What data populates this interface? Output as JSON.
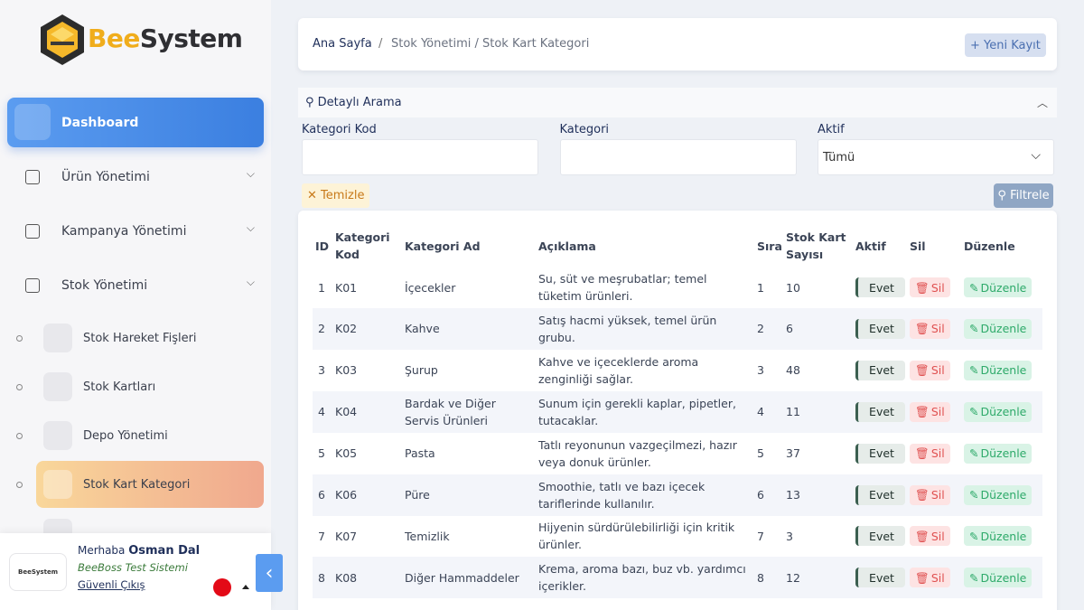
{
  "sidebar": {
    "logo": "BeeSystem",
    "menu": [
      "Dashboard",
      "Ürün Yönetimi",
      "Kampanya Yönetimi",
      "Stok Yönetimi"
    ],
    "submenu": [
      "Stok Hareket Fişleri",
      "Stok Kartları",
      "Depo Yönetimi",
      "Stok Kart Kategori"
    ]
  },
  "user": {
    "greeting": "Merhaba",
    "name": "Osman Dal",
    "system": "BeeBoss Test Sistemi",
    "logout": "Güvenli Çıkış",
    "logo_text": "BeeSystem"
  },
  "breadcrumb": {
    "home": "Ana Sayfa",
    "separator": "/",
    "path": "Stok Yönetimi / Stok Kart Kategori"
  },
  "new_button": "Yeni Kayıt",
  "filter": {
    "title": "Detaylı Arama",
    "fields": [
      "Kategori Kod",
      "Kategori",
      "Aktif"
    ],
    "select_value": "Tümü",
    "clear": "Temizle",
    "apply": "Filtrele"
  },
  "table": {
    "headers": [
      "ID",
      "Kategori Kod",
      "Kategori Ad",
      "Açıklama",
      "Sıra",
      "Stok Kart Sayısı",
      "Aktif",
      "Sil",
      "Düzenle"
    ],
    "delete_label": "Sil",
    "edit_label": "Düzenle",
    "rows": [
      {
        "id": 1,
        "code": "K01",
        "name": "İçecekler",
        "description": "Su, süt ve meşrubatlar; temel tüketim ürünleri.",
        "order": 1,
        "count": 10,
        "active": "Evet"
      },
      {
        "id": 2,
        "code": "K02",
        "name": "Kahve",
        "description": "Satış hacmi yüksek, temel ürün grubu.",
        "order": 2,
        "count": 6,
        "active": "Evet"
      },
      {
        "id": 3,
        "code": "K03",
        "name": "Şurup",
        "description": "Kahve ve içeceklerde aroma zenginliği sağlar.",
        "order": 3,
        "count": 48,
        "active": "Evet"
      },
      {
        "id": 4,
        "code": "K04",
        "name": "Bardak ve Diğer Servis Ürünleri",
        "description": "Sunum için gerekli kaplar, pipetler, tutacaklar.",
        "order": 4,
        "count": 11,
        "active": "Evet"
      },
      {
        "id": 5,
        "code": "K05",
        "name": "Pasta",
        "description": "Tatlı reyonunun vazgeçilmezi, hazır veya donuk ürünler.",
        "order": 5,
        "count": 37,
        "active": "Evet"
      },
      {
        "id": 6,
        "code": "K06",
        "name": "Püre",
        "description": "Smoothie, tatlı ve bazı içecek tariflerinde kullanılır.",
        "order": 6,
        "count": 13,
        "active": "Evet"
      },
      {
        "id": 7,
        "code": "K07",
        "name": "Temizlik",
        "description": "Hijyenin sürdürülebilirliği için kritik ürünler.",
        "order": 7,
        "count": 3,
        "active": "Evet"
      },
      {
        "id": 8,
        "code": "K08",
        "name": "Diğer Hammaddeler",
        "description": "Krema, aroma bazı, buz vb. yardımcı içerikler.",
        "order": 8,
        "count": 12,
        "active": "Evet"
      }
    ]
  }
}
